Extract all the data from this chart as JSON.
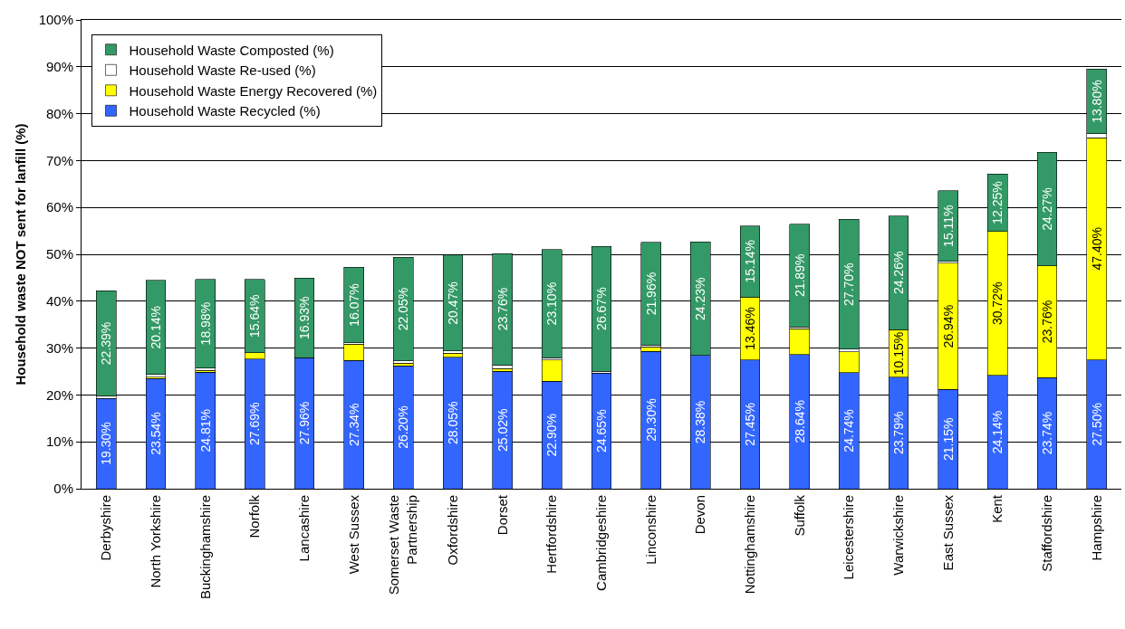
{
  "chart_data": {
    "type": "bar",
    "stacked": true,
    "ylabel": "Household waste NOT sent for lanfill (%)",
    "categories": [
      "Derbyshire",
      "North Yorkshire",
      "Buckinghamshire",
      "Norfolk",
      "Lancashire",
      "West Sussex",
      "Somerset Waste Partnership",
      "Oxfordshire",
      "Dorset",
      "Hertfordshire",
      "Cambridgeshire",
      "Linconshire",
      "Devon",
      "Nottinghamshire",
      "Suffolk",
      "Leicestershire",
      "Warwickshire",
      "East Sussex",
      "Kent",
      "Staffordshire",
      "Hampshire"
    ],
    "series": [
      {
        "name": "Household Waste Recycled (%)",
        "color": "#3366ff",
        "values": [
          19.3,
          23.54,
          24.81,
          27.69,
          27.96,
          27.34,
          26.2,
          28.05,
          25.02,
          22.9,
          24.65,
          29.3,
          28.38,
          27.45,
          28.64,
          24.74,
          23.79,
          21.15,
          24.14,
          23.74,
          27.5
        ],
        "value_labels": [
          "19.30%",
          "23.54%",
          "24.81%",
          "27.69%",
          "27.96%",
          "27.34%",
          "26.20%",
          "28.05%",
          "25.02%",
          "22.90%",
          "24.65%",
          "29.30%",
          "28.38%",
          "27.45%",
          "28.64%",
          "24.74%",
          "23.79%",
          "21.15%",
          "24.14%",
          "23.74%",
          "27.50%"
        ]
      },
      {
        "name": "Household Waste Energy Recovered (%)",
        "color": "#ffff00",
        "values": [
          null,
          0.3,
          0.4,
          1.3,
          null,
          3.5,
          0.6,
          0.9,
          0.6,
          4.6,
          null,
          1.0,
          null,
          13.46,
          5.5,
          4.5,
          10.15,
          26.94,
          30.72,
          23.76,
          47.4
        ],
        "value_labels": [
          null,
          null,
          null,
          null,
          null,
          null,
          null,
          null,
          null,
          null,
          null,
          null,
          null,
          "13.46%",
          null,
          null,
          "10.15%",
          "26.94%",
          "30.72%",
          "23.76%",
          "47.40%"
        ]
      },
      {
        "name": "Household Waste Re-used (%)",
        "color": "#ffffff",
        "values": [
          0.5,
          0.5,
          0.5,
          null,
          null,
          0.3,
          0.5,
          0.4,
          0.8,
          0.4,
          0.4,
          0.3,
          null,
          null,
          0.4,
          0.5,
          null,
          0.4,
          null,
          null,
          0.8
        ]
      },
      {
        "name": "Household Waste Composted (%)",
        "color": "#339966",
        "values": [
          22.39,
          20.14,
          18.98,
          15.64,
          16.93,
          16.07,
          22.05,
          20.47,
          23.76,
          23.1,
          26.67,
          21.96,
          24.23,
          15.14,
          21.89,
          27.7,
          24.26,
          15.11,
          12.25,
          24.27,
          13.8
        ],
        "value_labels": [
          "22.39%",
          "20.14%",
          "18.98%",
          "15.64%",
          "16.93%",
          "16.07%",
          "22.05%",
          "20.47%",
          "23.76%",
          "23.10%",
          "26.67%",
          "21.96%",
          "24.23%",
          "15.14%",
          "21.89%",
          "27.70%",
          "24.26%",
          "15.11%",
          "12.25%",
          "24.27%",
          "13.80%"
        ]
      }
    ],
    "ylim": [
      0,
      100
    ],
    "yticks": [
      {
        "value": 0,
        "label": "0%"
      },
      {
        "value": 10,
        "label": "10%"
      },
      {
        "value": 20,
        "label": "20%"
      },
      {
        "value": 30,
        "label": "30%"
      },
      {
        "value": 40,
        "label": "40%"
      },
      {
        "value": 50,
        "label": "50%"
      },
      {
        "value": 60,
        "label": "60%"
      },
      {
        "value": 70,
        "label": "70%"
      },
      {
        "value": 80,
        "label": "80%"
      },
      {
        "value": 90,
        "label": "90%"
      },
      {
        "value": 100,
        "label": "100%"
      }
    ],
    "grid": "y",
    "legend": "top left"
  }
}
